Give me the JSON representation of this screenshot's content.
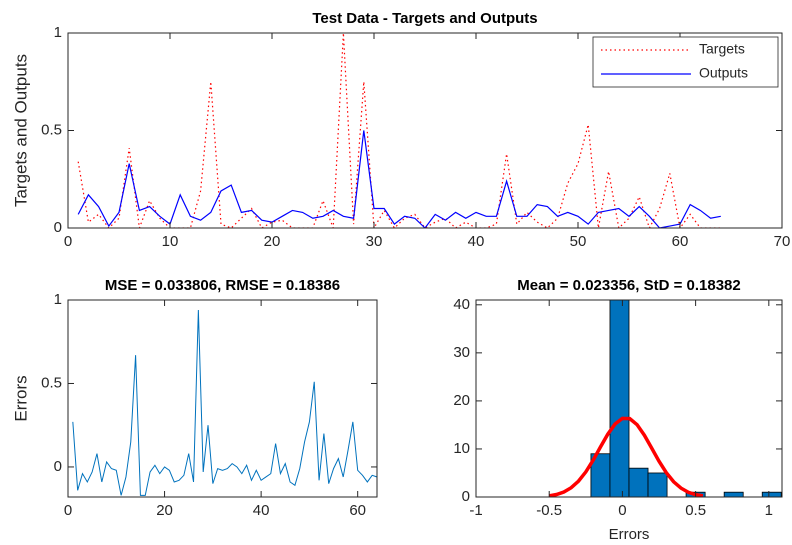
{
  "chart_data": [
    {
      "type": "line",
      "title": "Test Data - Targets and Outputs",
      "ylabel": "Targets and Outputs",
      "x": [
        1,
        2,
        3,
        4,
        5,
        6,
        7,
        8,
        9,
        10,
        11,
        12,
        13,
        14,
        15,
        16,
        17,
        18,
        19,
        20,
        21,
        22,
        23,
        24,
        25,
        26,
        27,
        28,
        29,
        30,
        31,
        32,
        33,
        34,
        35,
        36,
        37,
        38,
        39,
        40,
        41,
        42,
        43,
        44,
        45,
        46,
        47,
        48,
        49,
        50,
        51,
        52,
        53,
        54,
        55,
        56,
        57,
        58,
        59,
        60,
        61,
        62,
        63,
        64
      ],
      "series": [
        {
          "name": "Targets",
          "color": "#ff0000",
          "linestyle": "dotted",
          "values": [
            0.34,
            0.03,
            0.07,
            0.0,
            0.05,
            0.41,
            0.0,
            0.14,
            0.05,
            0.0,
            0.0,
            0.0,
            0.19,
            0.75,
            0.02,
            0.0,
            0.05,
            0.1,
            0.0,
            0.03,
            0.04,
            0.0,
            0.0,
            0.0,
            0.14,
            0.0,
            1.0,
            0.02,
            0.75,
            0.0,
            0.09,
            0.0,
            0.05,
            0.07,
            0.0,
            0.03,
            0.05,
            0.0,
            0.03,
            0.0,
            0.0,
            0.02,
            0.38,
            0.02,
            0.08,
            0.03,
            0.0,
            0.05,
            0.23,
            0.33,
            0.53,
            0.0,
            0.29,
            0.0,
            0.05,
            0.16,
            0.0,
            0.1,
            0.28,
            0.0,
            0.07,
            0.0,
            0.0,
            0.0
          ]
        },
        {
          "name": "Outputs",
          "color": "#0000ff",
          "linestyle": "solid",
          "values": [
            0.07,
            0.17,
            0.11,
            0.01,
            0.08,
            0.33,
            0.09,
            0.11,
            0.06,
            0.02,
            0.17,
            0.06,
            0.04,
            0.08,
            0.19,
            0.22,
            0.08,
            0.09,
            0.04,
            0.03,
            0.06,
            0.09,
            0.08,
            0.05,
            0.06,
            0.09,
            0.06,
            0.05,
            0.5,
            0.1,
            0.1,
            0.02,
            0.06,
            0.05,
            0.0,
            0.07,
            0.04,
            0.08,
            0.05,
            0.08,
            0.06,
            0.06,
            0.24,
            0.06,
            0.06,
            0.12,
            0.11,
            0.06,
            0.08,
            0.06,
            0.02,
            0.08,
            0.09,
            0.1,
            0.06,
            0.11,
            0.06,
            0.0,
            0.01,
            0.02,
            0.12,
            0.09,
            0.05,
            0.06
          ]
        }
      ],
      "xlim": [
        0,
        70
      ],
      "xticks": [
        0,
        10,
        20,
        30,
        40,
        50,
        60,
        70
      ],
      "ylim": [
        0,
        1
      ],
      "yticks": [
        0,
        0.5,
        1
      ],
      "legend": "northeast"
    },
    {
      "type": "line",
      "title": "MSE = 0.033806, RMSE = 0.18386",
      "ylabel": "Errors",
      "color": "#0072bd",
      "x": [
        1,
        2,
        3,
        4,
        5,
        6,
        7,
        8,
        9,
        10,
        11,
        12,
        13,
        14,
        15,
        16,
        17,
        18,
        19,
        20,
        21,
        22,
        23,
        24,
        25,
        26,
        27,
        28,
        29,
        30,
        31,
        32,
        33,
        34,
        35,
        36,
        37,
        38,
        39,
        40,
        41,
        42,
        43,
        44,
        45,
        46,
        47,
        48,
        49,
        50,
        51,
        52,
        53,
        54,
        55,
        56,
        57,
        58,
        59,
        60,
        61,
        62,
        63,
        64
      ],
      "values": [
        0.27,
        -0.14,
        -0.04,
        -0.09,
        -0.03,
        0.08,
        -0.09,
        0.03,
        -0.01,
        -0.02,
        -0.17,
        -0.06,
        0.15,
        0.67,
        -0.17,
        -0.17,
        -0.03,
        0.01,
        -0.04,
        0.0,
        -0.02,
        -0.09,
        -0.08,
        -0.05,
        0.08,
        -0.09,
        0.94,
        -0.03,
        0.25,
        -0.1,
        -0.01,
        -0.02,
        -0.01,
        0.02,
        0.0,
        -0.04,
        0.01,
        -0.08,
        -0.02,
        -0.08,
        -0.06,
        -0.04,
        0.14,
        -0.04,
        0.02,
        -0.09,
        -0.11,
        -0.01,
        0.15,
        0.27,
        0.51,
        -0.08,
        0.2,
        -0.1,
        -0.01,
        0.05,
        -0.06,
        0.1,
        0.27,
        -0.02,
        -0.05,
        -0.09,
        -0.05,
        -0.06
      ],
      "xlim": [
        0,
        64
      ],
      "xticks": [
        0,
        20,
        40,
        60
      ],
      "ylim": [
        -0.18,
        1
      ],
      "yticks": [
        0,
        0.5,
        1
      ]
    },
    {
      "type": "histogram",
      "title": "Mean = 0.023356, StD = 0.18382",
      "xlabel": "Errors",
      "color": "#0072bd",
      "bins": [
        -0.215,
        -0.085,
        0.045,
        0.175,
        0.305,
        0.435,
        0.565,
        0.695,
        0.825,
        0.955,
        1.085
      ],
      "values": [
        9,
        41,
        6,
        5,
        0,
        1,
        0,
        1,
        0,
        1
      ],
      "fit": {
        "color": "#ff0000",
        "x": [
          -0.5,
          -0.45,
          -0.4,
          -0.35,
          -0.3,
          -0.25,
          -0.2,
          -0.15,
          -0.1,
          -0.05,
          0,
          0.05,
          0.1,
          0.15,
          0.2,
          0.25,
          0.3,
          0.35,
          0.4,
          0.45,
          0.5,
          0.55
        ],
        "values": [
          0.24,
          0.52,
          1.04,
          1.93,
          3.3,
          5.22,
          7.66,
          10.4,
          13.07,
          15.2,
          16.37,
          16.31,
          15.06,
          12.86,
          10.18,
          7.45,
          5.05,
          3.17,
          1.85,
          0.99,
          0.49,
          0.23
        ]
      },
      "xlim": [
        -1,
        1.09
      ],
      "xticks": [
        -1,
        -0.5,
        0,
        0.5,
        1
      ],
      "ylim": [
        0,
        41
      ],
      "yticks": [
        0,
        10,
        20,
        30,
        40
      ]
    }
  ]
}
